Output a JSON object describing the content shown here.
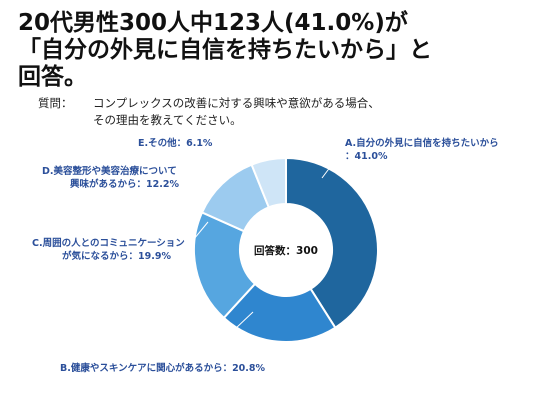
{
  "headline": {
    "line1": "20代男性300人中123人(41.0%)が",
    "line2": "「自分の外見に自信を持ちたいから」と",
    "line3": "回答。"
  },
  "question": {
    "label": "質問：",
    "line1": "コンプレックスの改善に対する興味や意欲がある場合、",
    "line2": "その理由を教えてください。"
  },
  "chart_data": {
    "type": "pie",
    "center_label": "回答数：300",
    "slices": [
      {
        "name": "A.自分の外見に自信を持ちたいから",
        "label_lines": [
          "A.自分の外見に自信を持ちたいから",
          "：41.0%"
        ],
        "value": 41.0,
        "color": "#1f669e"
      },
      {
        "name": "B.健康やスキンケアに関心があるから",
        "label_lines": [
          "B.健康やスキンケアに関心があるから：20.8%"
        ],
        "value": 20.8,
        "color": "#2f86cf"
      },
      {
        "name": "C.周囲の人とのコミュニケーションが気になるから",
        "label_lines": [
          "C.周囲の人とのコミュニケーション",
          "が気になるから：19.9%"
        ],
        "value": 19.9,
        "color": "#56a6e0"
      },
      {
        "name": "D.美容整形や美容治療について興味があるから",
        "label_lines": [
          "D.美容整形や美容治療について",
          "興味があるから：12.2%"
        ],
        "value": 12.2,
        "color": "#9ccbef"
      },
      {
        "name": "E.その他",
        "label_lines": [
          "E.その他：6.1%"
        ],
        "value": 6.1,
        "color": "#cfe5f7"
      }
    ]
  }
}
